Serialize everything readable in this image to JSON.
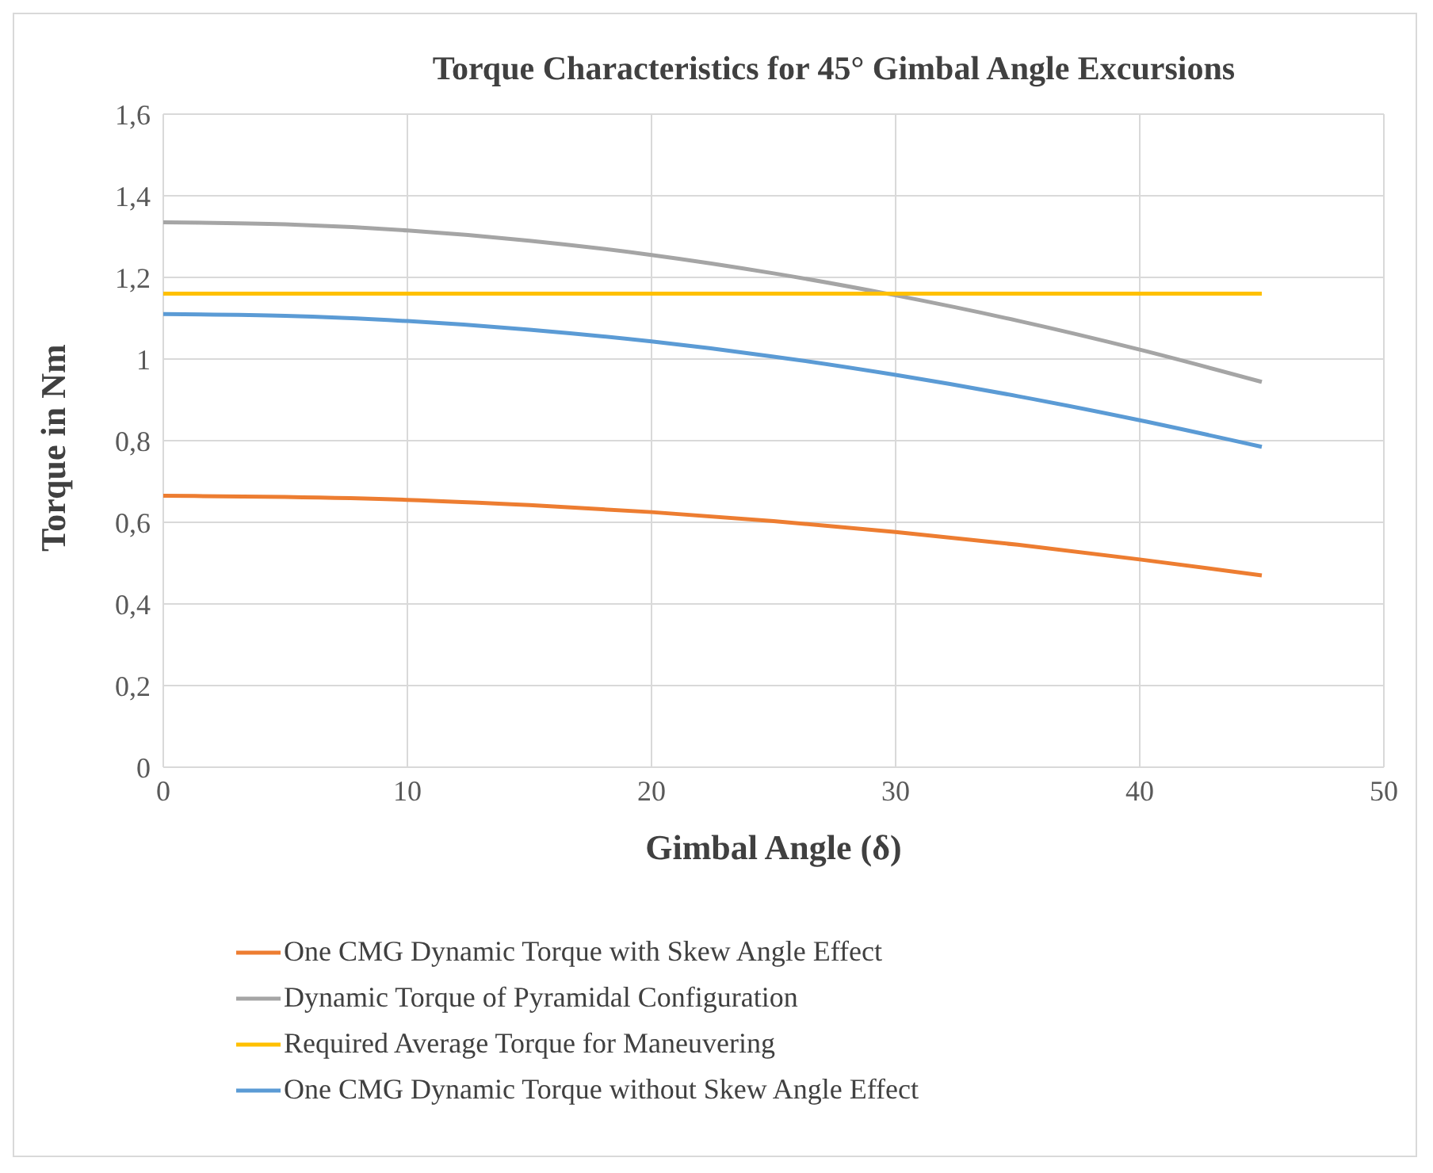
{
  "chart_data": {
    "type": "line",
    "title": "Torque Characteristics for 45° Gimbal Angle Excursions",
    "xlabel": "Gimbal Angle (δ)",
    "ylabel": "Torque in Nm",
    "x": [
      0,
      5,
      10,
      15,
      20,
      25,
      30,
      35,
      40,
      45
    ],
    "series": [
      {
        "name": "One CMG Dynamic Torque with Skew Angle Effect",
        "color": "#ed7d31",
        "values": [
          0.665,
          0.662,
          0.655,
          0.642,
          0.625,
          0.603,
          0.576,
          0.545,
          0.509,
          0.47
        ]
      },
      {
        "name": "Dynamic Torque of Pyramidal Configuration",
        "color": "#a5a5a5",
        "values": [
          1.335,
          1.33,
          1.315,
          1.29,
          1.255,
          1.21,
          1.156,
          1.094,
          1.023,
          0.944
        ]
      },
      {
        "name": "Required Average Torque for Maneuvering",
        "color": "#ffc000",
        "values": [
          1.16,
          1.16,
          1.16,
          1.16,
          1.16,
          1.16,
          1.16,
          1.16,
          1.16,
          1.16
        ]
      },
      {
        "name": "One CMG Dynamic Torque without Skew Angle Effect",
        "color": "#5b9bd5",
        "values": [
          1.11,
          1.106,
          1.093,
          1.072,
          1.043,
          1.006,
          0.961,
          0.909,
          0.85,
          0.785
        ]
      }
    ],
    "xlim": [
      0,
      50
    ],
    "xticks": [
      0,
      10,
      20,
      30,
      40,
      50
    ],
    "ylim": [
      0,
      1.6
    ],
    "yticks": [
      0,
      {
        "value": 0.2,
        "label": "0,2"
      },
      {
        "value": 0.4,
        "label": "0,4"
      },
      {
        "value": 0.6,
        "label": "0,6"
      },
      {
        "value": 0.8,
        "label": "0,8"
      },
      1,
      {
        "value": 1.2,
        "label": "1,2"
      },
      {
        "value": 1.4,
        "label": "1,4"
      },
      {
        "value": 1.6,
        "label": "1,6"
      }
    ],
    "grid": true,
    "legend": "bottom",
    "marker": "none",
    "line_style": "solid"
  }
}
